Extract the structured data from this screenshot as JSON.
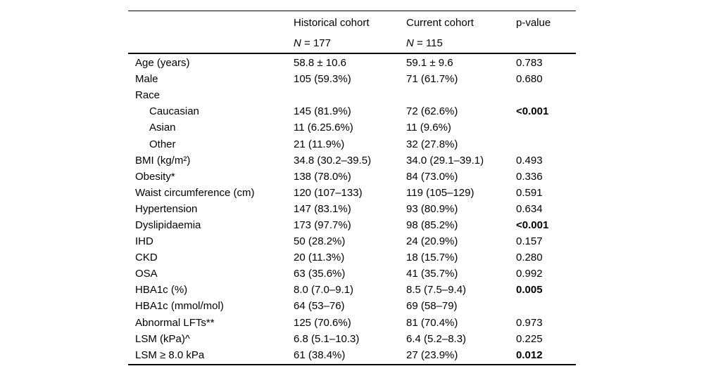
{
  "page": {
    "background_color": "#ffffff",
    "text_color": "#000000",
    "rule_color": "#000000"
  },
  "table": {
    "header": {
      "corner": "",
      "historical": {
        "title": "Historical cohort",
        "n_italic": "N",
        "n_rest": " = 177"
      },
      "current": {
        "title": "Current cohort",
        "n_italic": "N",
        "n_rest": " = 115"
      },
      "pvalue": {
        "title": "p-value"
      }
    },
    "rows": [
      {
        "label": "Age (years)",
        "indent": false,
        "historical": "58.8 ± 10.6",
        "current": "59.1 ± 9.6",
        "p": "0.783",
        "p_bold": false
      },
      {
        "label": "Male",
        "indent": false,
        "historical": "105 (59.3%)",
        "current": "71 (61.7%)",
        "p": "0.680",
        "p_bold": false
      },
      {
        "label": "Race",
        "indent": false,
        "historical": "",
        "current": "",
        "p": "",
        "p_bold": false
      },
      {
        "label": "Caucasian",
        "indent": true,
        "historical": "145 (81.9%)",
        "current": "72 (62.6%)",
        "p": "<0.001",
        "p_bold": true
      },
      {
        "label": "Asian",
        "indent": true,
        "historical": "11 (6.25.6%)",
        "current": "11 (9.6%)",
        "p": "",
        "p_bold": false
      },
      {
        "label": "Other",
        "indent": true,
        "historical": "21 (11.9%)",
        "current": "32 (27.8%)",
        "p": "",
        "p_bold": false
      },
      {
        "label": "BMI (kg/m²)",
        "indent": false,
        "historical": "34.8 (30.2–39.5)",
        "current": "34.0 (29.1–39.1)",
        "p": "0.493",
        "p_bold": false
      },
      {
        "label": "Obesity*",
        "indent": false,
        "historical": "138 (78.0%)",
        "current": "84 (73.0%)",
        "p": "0.336",
        "p_bold": false
      },
      {
        "label": "Waist circumference (cm)",
        "indent": false,
        "historical": "120 (107–133)",
        "current": "119 (105–129)",
        "p": "0.591",
        "p_bold": false
      },
      {
        "label": "Hypertension",
        "indent": false,
        "historical": "147 (83.1%)",
        "current": "93 (80.9%)",
        "p": "0.634",
        "p_bold": false
      },
      {
        "label": "Dyslipidaemia",
        "indent": false,
        "historical": "173 (97.7%)",
        "current": "98 (85.2%)",
        "p": "<0.001",
        "p_bold": true
      },
      {
        "label": "IHD",
        "indent": false,
        "historical": "50 (28.2%)",
        "current": "24 (20.9%)",
        "p": "0.157",
        "p_bold": false
      },
      {
        "label": "CKD",
        "indent": false,
        "historical": "20 (11.3%)",
        "current": "18 (15.7%)",
        "p": "0.280",
        "p_bold": false
      },
      {
        "label": "OSA",
        "indent": false,
        "historical": "63 (35.6%)",
        "current": "41 (35.7%)",
        "p": "0.992",
        "p_bold": false
      },
      {
        "label": "HBA1c (%)",
        "indent": false,
        "historical": "8.0 (7.0–9.1)",
        "current": "8.5 (7.5–9.4)",
        "p": "0.005",
        "p_bold": true
      },
      {
        "label": "HBA1c (mmol/mol)",
        "indent": false,
        "historical": "64 (53–76)",
        "current": "69 (58–79)",
        "p": "",
        "p_bold": false
      },
      {
        "label": "Abnormal LFTs**",
        "indent": false,
        "historical": "125 (70.6%)",
        "current": "81 (70.4%)",
        "p": "0.973",
        "p_bold": false
      },
      {
        "label": "LSM (kPa)^",
        "indent": false,
        "historical": "6.8 (5.1–10.3)",
        "current": "6.4 (5.2–8.3)",
        "p": "0.225",
        "p_bold": false
      },
      {
        "label": "LSM ≥ 8.0 kPa",
        "indent": false,
        "historical": "61 (38.4%)",
        "current": "27 (23.9%)",
        "p": "0.012",
        "p_bold": true
      }
    ]
  }
}
